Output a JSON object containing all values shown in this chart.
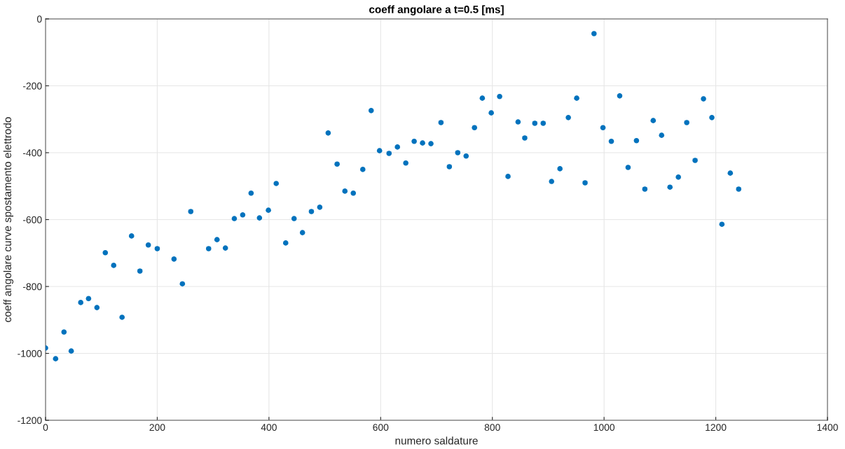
{
  "chart_data": {
    "type": "scatter",
    "title": "coeff angolare a t=0.5 [ms]",
    "xlabel": "numero saldature",
    "ylabel": "coeff angolare curve spostamento elettrodo",
    "xlim": [
      0,
      1400
    ],
    "xticks": [
      0,
      200,
      400,
      600,
      800,
      1000,
      1200,
      1400
    ],
    "ylim": [
      -1200,
      0
    ],
    "yticks": [
      -1200,
      -1000,
      -800,
      -600,
      -400,
      -200,
      0
    ],
    "grid": true,
    "marker": "circle",
    "series": [
      {
        "color": "#0072bd",
        "x": [
          0,
          18,
          33,
          46,
          63,
          77,
          92,
          107,
          122,
          137,
          154,
          169,
          184,
          200,
          230,
          245,
          260,
          292,
          307,
          322,
          338,
          353,
          368,
          383,
          399,
          413,
          430,
          445,
          460,
          476,
          491,
          506,
          522,
          536,
          551,
          568,
          583,
          598,
          615,
          630,
          645,
          660,
          675,
          690,
          708,
          723,
          738,
          753,
          768,
          782,
          798,
          813,
          828,
          846,
          858,
          876,
          891,
          906,
          921,
          936,
          951,
          966,
          982,
          998,
          1013,
          1028,
          1043,
          1058,
          1073,
          1088,
          1103,
          1118,
          1133,
          1148,
          1163,
          1178,
          1193,
          1211,
          1226,
          1241
        ],
        "values": [
          -984,
          -1016,
          -936,
          -993,
          -848,
          -836,
          -863,
          -699,
          -737,
          -892,
          -649,
          -754,
          -676,
          -687,
          -718,
          -792,
          -576,
          -687,
          -660,
          -685,
          -597,
          -586,
          -521,
          -595,
          -572,
          -492,
          -670,
          -597,
          -639,
          -576,
          -563,
          -341,
          -434,
          -515,
          -521,
          -450,
          -274,
          -394,
          -402,
          -383,
          -431,
          -366,
          -371,
          -373,
          -310,
          -442,
          -400,
          -410,
          -325,
          -237,
          -281,
          -232,
          -471,
          -308,
          -356,
          -312,
          -312,
          -486,
          -448,
          -295,
          -237,
          -490,
          -44,
          -325,
          -366,
          -230,
          -444,
          -364,
          -509,
          -304,
          -348,
          -503,
          -473,
          -310,
          -423,
          -239,
          -295,
          -614,
          -461,
          -509
        ]
      }
    ]
  }
}
